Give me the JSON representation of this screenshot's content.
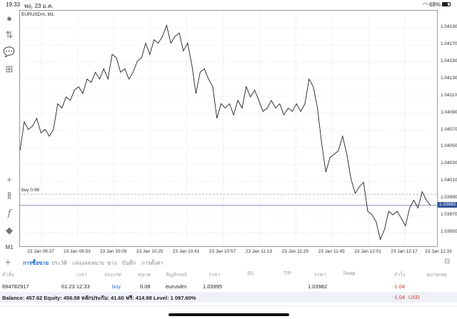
{
  "status": {
    "time": "19:33",
    "date": "พฤ. 23 ม.ค.",
    "battery": "68%"
  },
  "toolbar": {
    "period": "M1"
  },
  "chart": {
    "symbol_label": "EURUSDm, M1",
    "order_line_label": "buy 0.08",
    "current_price": "1.03982",
    "colors": {
      "line": "#222222",
      "order_line": "#b0a090",
      "bid_line": "#5a6fa8",
      "bid_badge": "#2f5597"
    }
  },
  "chart_data": {
    "type": "line",
    "title": "EURUSDm, M1",
    "ylim": [
      1.0394,
      1.04196
    ],
    "ytick_labels": [
      "1.04190",
      "1.04170",
      "1.04150",
      "1.04130",
      "1.04110",
      "1.04090",
      "1.04070",
      "1.04050",
      "1.04030",
      "1.04010",
      "1.03990",
      "1.03970",
      "1.03950"
    ],
    "xtick_labels": [
      "23 Jan 09:37",
      "23 Jan 09:53",
      "23 Jan 10:09",
      "23 Jan 10:25",
      "23 Jan 10:41",
      "23 Jan 10:57",
      "23 Jan 11:13",
      "23 Jan 11:29",
      "23 Jan 11:45",
      "23 Jan 12:01",
      "23 Jan 12:17",
      "23 Jan 12:33"
    ],
    "order_price": 1.03995,
    "bid_price": 1.03982,
    "values": [
      1.04046,
      1.0408,
      1.04071,
      1.04075,
      1.04084,
      1.04067,
      1.04071,
      1.04063,
      1.04071,
      1.04101,
      1.04096,
      1.04109,
      1.04105,
      1.04117,
      1.04121,
      1.04113,
      1.0413,
      1.04126,
      1.04138,
      1.0413,
      1.04142,
      1.0413,
      1.04159,
      1.04155,
      1.04138,
      1.04142,
      1.0413,
      1.04138,
      1.04151,
      1.04155,
      1.04172,
      1.04159,
      1.04176,
      1.04172,
      1.0418,
      1.04193,
      1.04172,
      1.0418,
      1.04184,
      1.04163,
      1.04172,
      1.04147,
      1.04113,
      1.04138,
      1.04142,
      1.0413,
      1.04121,
      1.04084,
      1.04101,
      1.04096,
      1.04101,
      1.04088,
      1.04105,
      1.04096,
      1.04121,
      1.04109,
      1.04117,
      1.04105,
      1.04092,
      1.04096,
      1.04105,
      1.04096,
      1.04101,
      1.04088,
      1.04096,
      1.04092,
      1.04101,
      1.04092,
      1.04101,
      1.0413,
      1.04121,
      1.04096,
      1.04055,
      1.04021,
      1.04038,
      1.04042,
      1.04046,
      1.04063,
      1.04042,
      1.04013,
      1.03996,
      1.04004,
      1.04009,
      1.03975,
      1.03971,
      1.03963,
      1.03942,
      1.03954,
      1.03975,
      1.03971,
      1.03975,
      1.03967,
      1.03958,
      1.03979,
      1.03988,
      1.03979,
      1.03998,
      1.03988,
      1.03982
    ]
  },
  "tabs": [
    "การซื้อขาย",
    "ประวัติ",
    "กล่องจดหมาย",
    "ข่าว",
    "บันทึก",
    "การตั้งค่า"
  ],
  "table": {
    "headers": [
      "คำสั่ง",
      "เวลา",
      "ประเภท",
      "ขนาด",
      "สัญลักษณ์",
      "ราคา",
      "S/L",
      "T/P",
      "ราคา",
      "Swap",
      "กำไร",
      "หมายเหตุ"
    ],
    "row": {
      "order": "694782917",
      "time": "01.23 12:33",
      "type": "buy",
      "size": "0.08",
      "symbol": "eurusdm",
      "open_price": "1.03995",
      "price": "1.03982",
      "profit": "-1.04"
    }
  },
  "balance": {
    "text": "Balance: 457.62 Equity: 456.58 หลักประกัน: 41.60 ฟรี: 414.98 Level: 1 097.60%",
    "profit": "-1.04",
    "currency": "USD"
  }
}
